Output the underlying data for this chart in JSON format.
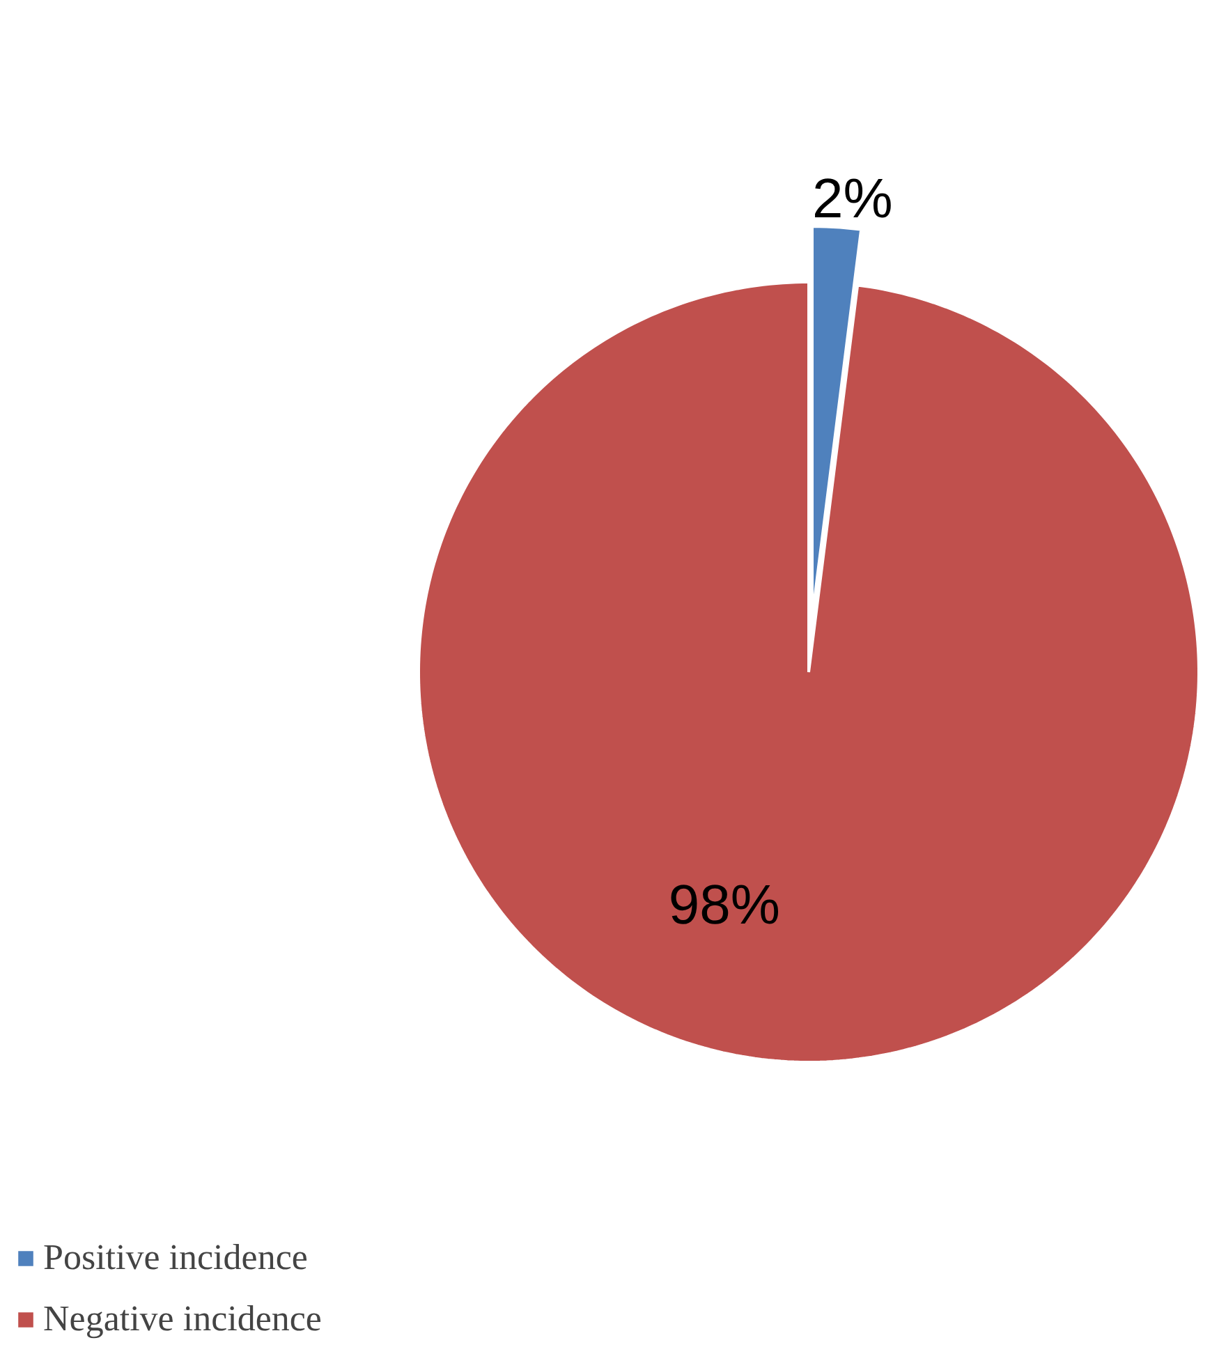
{
  "chart_data": {
    "type": "pie",
    "categories": [
      "Positive incidence",
      "Negative incidence"
    ],
    "values": [
      2,
      98
    ],
    "value_labels": [
      "2%",
      "98%"
    ],
    "colors": [
      "#4f81bd",
      "#c0504d"
    ],
    "legend": "bottom left"
  }
}
